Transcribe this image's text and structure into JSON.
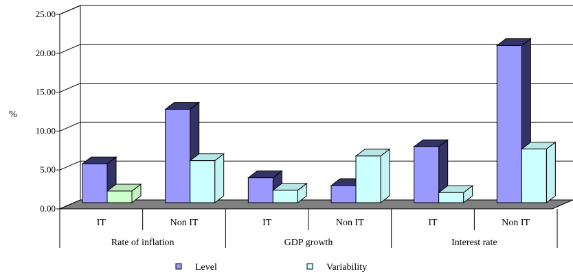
{
  "chart_data": {
    "type": "bar",
    "ylabel": "%",
    "ylim": [
      0,
      25
    ],
    "yticks": [
      "0.00",
      "5.00",
      "10.00",
      "15.00",
      "20.00",
      "25.00"
    ],
    "grid": true,
    "legend_position": "bottom",
    "groups": [
      {
        "label": "Rate of inflation",
        "categories": [
          "IT",
          "Non IT"
        ]
      },
      {
        "label": "GDP growth",
        "categories": [
          "IT",
          "Non IT"
        ]
      },
      {
        "label": "Interest rate",
        "categories": [
          "IT",
          "Non IT"
        ]
      }
    ],
    "categories": [
      "IT",
      "Non IT",
      "IT",
      "Non IT",
      "IT",
      "Non IT"
    ],
    "series": [
      {
        "name": "Level",
        "color": "#9999ff",
        "values": [
          5.0,
          12.0,
          3.2,
          2.2,
          7.2,
          20.2
        ]
      },
      {
        "name": "Variability",
        "color": "#ccffff",
        "values": [
          1.5,
          5.4,
          1.6,
          6.0,
          1.3,
          6.9
        ]
      }
    ],
    "highlight_color": "#ccffcc",
    "highlight_point": {
      "series": 1,
      "index": 0
    }
  }
}
